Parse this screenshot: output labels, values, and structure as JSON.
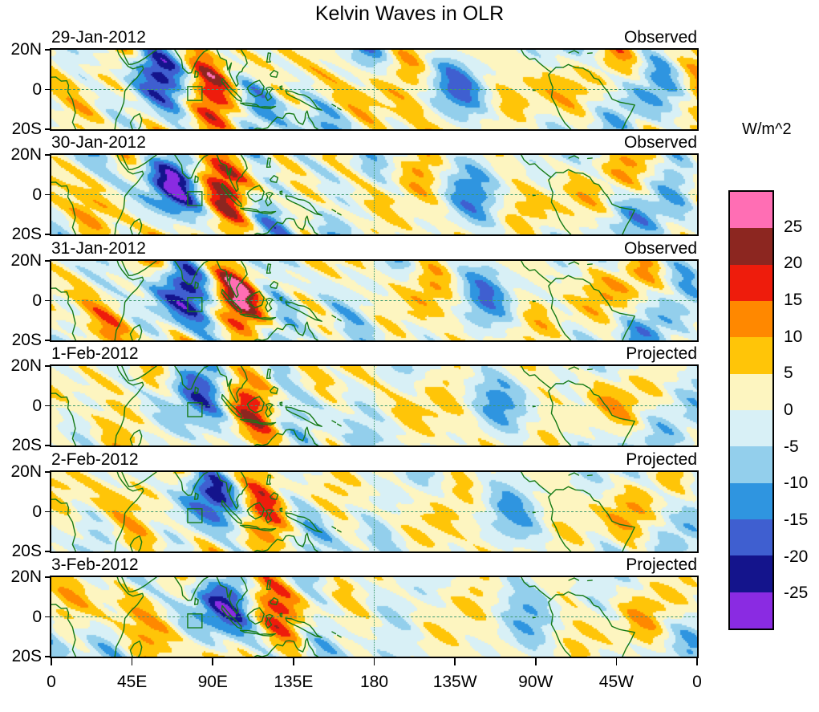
{
  "title": "Kelvin Waves in OLR",
  "y_axis": {
    "ticks": [
      "20N",
      "0",
      "20S"
    ]
  },
  "x_axis": {
    "ticks": [
      "0",
      "45E",
      "90E",
      "135E",
      "180",
      "135W",
      "90W",
      "45W",
      "0"
    ]
  },
  "panels": [
    {
      "date": "29-Jan-2012",
      "type": "Observed"
    },
    {
      "date": "30-Jan-2012",
      "type": "Observed"
    },
    {
      "date": "31-Jan-2012",
      "type": "Observed"
    },
    {
      "date": "1-Feb-2012",
      "type": "Projected"
    },
    {
      "date": "2-Feb-2012",
      "type": "Projected"
    },
    {
      "date": "3-Feb-2012",
      "type": "Projected"
    }
  ],
  "colorbar": {
    "label": "W/m^2",
    "tick_labels": [
      "25",
      "20",
      "15",
      "10",
      "5",
      "0",
      "-5",
      "-10",
      "-15",
      "-20",
      "-25"
    ],
    "colors_top_to_bottom": [
      "#ff6eb4",
      "#8c2620",
      "#ee1c0c",
      "#ff8800",
      "#ffc508",
      "#fdf5c0",
      "#d8f0f6",
      "#93cfec",
      "#2f95e0",
      "#3f5fd0",
      "#14148c",
      "#8a2be2"
    ]
  },
  "map": {
    "coastline_color": "#157a15",
    "reference_line_color": "#3d9970",
    "roi_box": {
      "lon_min": 76,
      "lon_max": 84,
      "lat_min": -5.5,
      "lat_max": 1.5
    }
  },
  "chart_data": {
    "type": "heatmap",
    "title": "Kelvin Waves in OLR",
    "units": "W/m^2",
    "contour_interval": 5,
    "value_levels": [
      -25,
      -20,
      -15,
      -10,
      -5,
      0,
      5,
      10,
      15,
      20,
      25
    ],
    "lon_axis": {
      "tick_labels": [
        "0",
        "45E",
        "90E",
        "135E",
        "180",
        "135W",
        "90W",
        "45W",
        "0"
      ],
      "range_deg_east": [
        0,
        360
      ]
    },
    "lat_axis": {
      "tick_labels": [
        "20N",
        "0",
        "20S"
      ],
      "range_deg_north": [
        -20,
        20
      ]
    },
    "panels": [
      {
        "date": "29-Jan-2012",
        "category": "Observed"
      },
      {
        "date": "30-Jan-2012",
        "category": "Observed"
      },
      {
        "date": "31-Jan-2012",
        "category": "Observed"
      },
      {
        "date": "1-Feb-2012",
        "category": "Projected"
      },
      {
        "date": "2-Feb-2012",
        "category": "Projected"
      },
      {
        "date": "3-Feb-2012",
        "category": "Projected"
      }
    ],
    "colorbar_colors_top_to_bottom": [
      "#ff6eb4",
      "#8c2620",
      "#ee1c0c",
      "#ff8800",
      "#ffc508",
      "#fdf5c0",
      "#d8f0f6",
      "#93cfec",
      "#2f95e0",
      "#3f5fd0",
      "#14148c",
      "#8a2be2"
    ],
    "legend_position": "right",
    "overlays": [
      "green coastlines",
      "dashed equator line",
      "dashed 180-degree meridian line",
      "small green region box near 80E on the equator"
    ],
    "description": "Six-panel longitude-latitude filled-contour maps of eastward-propagating Kelvin wave OLR anomalies (W/m^2), 5 W/m^2 contour fill interval, for 29-Jan-2012 through 3-Feb-2012. First three panels are Observed, last three are Projected."
  }
}
